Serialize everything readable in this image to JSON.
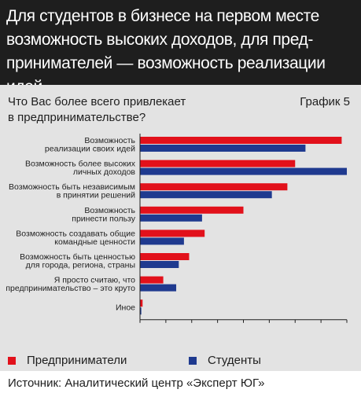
{
  "header": {
    "title": "Для студентов в бизнесе на первом месте\nвозможность высоких доходов, для пред-\nпринимателей — возможность реализации идей"
  },
  "chart_header": {
    "question": "Что Вас более всего привлекает\nв предпринимательстве?",
    "graph_number": "График 5"
  },
  "legend": {
    "entrepreneurs": "Предприниматели",
    "students": "Студенты"
  },
  "source": "Источник: Аналитический центр «Эксперт ЮГ»",
  "colors": {
    "entrepreneurs": "#e2111b",
    "students": "#1f3a8f",
    "header_bg": "#1e1e1e",
    "panel_bg": "#e3e3e3"
  },
  "chart_data": {
    "type": "bar",
    "orientation": "horizontal",
    "categories": [
      [
        "Возможность",
        "реализации своих идей"
      ],
      [
        "Возможность более высоких",
        "личных доходов"
      ],
      [
        "Возможность быть независимым",
        "в принятии решений"
      ],
      [
        "Возможность",
        "принести пользу"
      ],
      [
        "Возможность создавать общие",
        "командные ценности"
      ],
      [
        "Возможность быть ценностью",
        "для города, региона, страны"
      ],
      [
        "Я просто считаю, что",
        "предпринимательство – это круто"
      ],
      [
        "Иное"
      ]
    ],
    "series": [
      {
        "name": "Предприниматели",
        "values": [
          78,
          60,
          57,
          40,
          25,
          19,
          9,
          1
        ]
      },
      {
        "name": "Студенты",
        "values": [
          64,
          80,
          51,
          24,
          17,
          15,
          14,
          0.5
        ]
      }
    ],
    "xlim": [
      0,
      80
    ],
    "xticks": [
      "0",
      "10",
      "20",
      "30",
      "40",
      "50",
      "60",
      "70",
      "80"
    ],
    "grid": false,
    "legend_position": "bottom"
  }
}
